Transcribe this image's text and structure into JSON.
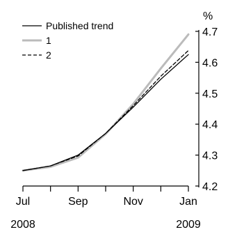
{
  "chart_data": {
    "type": "line",
    "title": "",
    "xlabel": "",
    "ylabel": "%",
    "x": [
      "2008-07",
      "2008-08",
      "2008-09",
      "2008-10",
      "2008-11",
      "2008-12",
      "2009-01"
    ],
    "x_tick_labels": [
      {
        "month": "Jul",
        "year": "2008"
      },
      {
        "month": "",
        "year": ""
      },
      {
        "month": "Sep",
        "year": ""
      },
      {
        "month": "",
        "year": ""
      },
      {
        "month": "Nov",
        "year": ""
      },
      {
        "month": "",
        "year": ""
      },
      {
        "month": "Jan",
        "year": "2009"
      }
    ],
    "ylim": [
      4.2,
      4.7
    ],
    "yticks": [
      "4.2",
      "4.3",
      "4.4",
      "4.5",
      "4.6",
      "4.7"
    ],
    "y_axis_side": "right",
    "grid": false,
    "legend_position": "top-left",
    "series": [
      {
        "name": "Published trend",
        "color": "#000000",
        "style": "solid",
        "values": [
          4.25,
          4.265,
          4.3,
          4.37,
          4.455,
          4.545,
          4.625
        ]
      },
      {
        "name": "1",
        "color": "#bbbbbb",
        "style": "solid",
        "values": [
          4.25,
          4.262,
          4.292,
          4.368,
          4.465,
          4.58,
          4.69
        ]
      },
      {
        "name": "2",
        "color": "#000000",
        "style": "dashed",
        "values": [
          4.25,
          4.265,
          4.297,
          4.37,
          4.46,
          4.555,
          4.638
        ]
      }
    ]
  }
}
